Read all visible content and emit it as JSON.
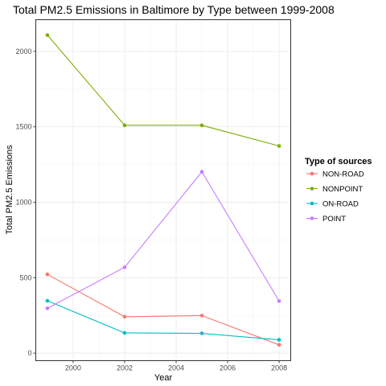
{
  "chart_data": {
    "type": "line",
    "title": "Total PM2.5 Emissions in Baltimore by Type between 1999-2008",
    "xlabel": "Year",
    "ylabel": "Total PM2.5 Emissions",
    "x": [
      1999,
      2002,
      2005,
      2008
    ],
    "xlim": [
      1998.55,
      2008.45
    ],
    "ylim": [
      -50,
      2210
    ],
    "x_ticks": [
      2000,
      2002,
      2004,
      2006,
      2008
    ],
    "y_ticks": [
      0,
      500,
      1000,
      1500,
      2000
    ],
    "grid": true,
    "legend_title": "Type of sources",
    "legend_position": "right",
    "series": [
      {
        "name": "NON-ROAD",
        "color": "#F8766D",
        "values": [
          522,
          241,
          249,
          55
        ]
      },
      {
        "name": "NONPOINT",
        "color": "#7CAE00",
        "values": [
          2108,
          1510,
          1510,
          1373
        ]
      },
      {
        "name": "ON-ROAD",
        "color": "#00BFC4",
        "values": [
          347,
          134,
          131,
          88
        ]
      },
      {
        "name": "POINT",
        "color": "#C77CFF",
        "values": [
          297,
          569,
          1202,
          345
        ]
      }
    ]
  }
}
